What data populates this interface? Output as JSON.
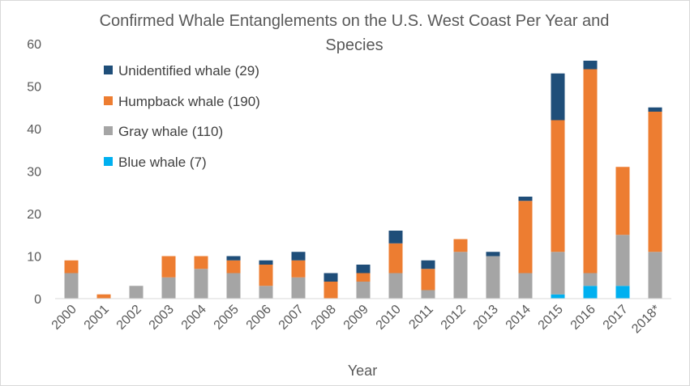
{
  "chart_data": {
    "type": "bar",
    "stacked": true,
    "title_line1": "Confirmed Whale Entanglements on the U.S. West Coast Per Year and",
    "title_line2": "Species",
    "xlabel": "Year",
    "ylabel": "",
    "ylim": [
      0,
      60
    ],
    "yticks": [
      "0",
      "10",
      "20",
      "30",
      "40",
      "50",
      "60"
    ],
    "grid": false,
    "legend_position": "top-left",
    "categories": [
      "2000",
      "2001",
      "2002",
      "2003",
      "2004",
      "2005",
      "2006",
      "2007",
      "2008",
      "2009",
      "2010",
      "2011",
      "2012",
      "2013",
      "2014",
      "2015",
      "2016",
      "2017",
      "2018*"
    ],
    "series": [
      {
        "name": "Blue whale (7)",
        "color": "#00b0f0",
        "values": [
          0,
          0,
          0,
          0,
          0,
          0,
          0,
          0,
          0,
          0,
          0,
          0,
          0,
          0,
          0,
          1,
          3,
          3,
          0
        ]
      },
      {
        "name": "Gray whale (110)",
        "color": "#a5a5a5",
        "values": [
          6,
          0,
          3,
          5,
          7,
          6,
          3,
          5,
          0,
          4,
          6,
          2,
          11,
          10,
          6,
          10,
          3,
          12,
          11
        ]
      },
      {
        "name": "Humpback whale (190)",
        "color": "#ed7d31",
        "values": [
          3,
          1,
          0,
          5,
          3,
          3,
          5,
          4,
          4,
          2,
          7,
          5,
          3,
          0,
          17,
          31,
          48,
          16,
          33
        ]
      },
      {
        "name": "Unidentified whale (29)",
        "color": "#1f4e79",
        "values": [
          0,
          0,
          0,
          0,
          0,
          1,
          1,
          2,
          2,
          2,
          3,
          2,
          0,
          1,
          1,
          11,
          2,
          0,
          1
        ]
      }
    ],
    "legend_order": [
      3,
      2,
      1,
      0
    ]
  }
}
